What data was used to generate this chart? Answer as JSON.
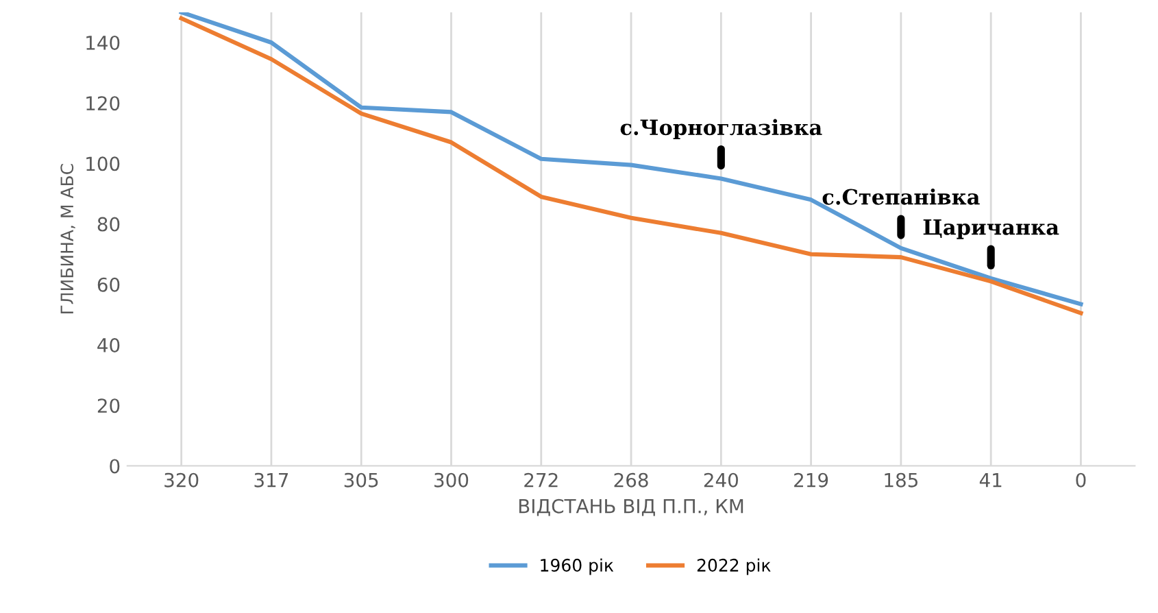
{
  "chart_data": {
    "type": "line",
    "xlabel": "ВІДСТАНЬ ВІД П.П., КМ",
    "ylabel": "ГЛИБИНА, М АБС",
    "categories": [
      "320",
      "317",
      "305",
      "300",
      "272",
      "268",
      "240",
      "219",
      "185",
      "41",
      "0"
    ],
    "series": [
      {
        "name": "1960 рік",
        "color": "#5b9bd5",
        "values": [
          150,
          140,
          118.5,
          117,
          101.5,
          99.5,
          95,
          88,
          72,
          62,
          53.5
        ]
      },
      {
        "name": "2022 рік",
        "color": "#ed7d31",
        "values": [
          148,
          134.5,
          116.5,
          107,
          89,
          82,
          77,
          70,
          69,
          61,
          50.5
        ]
      }
    ],
    "ylim": [
      0,
      150
    ],
    "yticks": [
      0,
      20,
      40,
      60,
      80,
      100,
      120,
      140
    ],
    "grid": "x",
    "legend": "bottom",
    "marker": "none",
    "line_style": "solid",
    "annotations": [
      {
        "text": "с.Чорноглазівка",
        "x": "240",
        "y": 95
      },
      {
        "text": "с.Степанівка",
        "x": "185",
        "y": 72
      },
      {
        "text": "Царичанка",
        "x": "41",
        "y": 62
      }
    ]
  }
}
